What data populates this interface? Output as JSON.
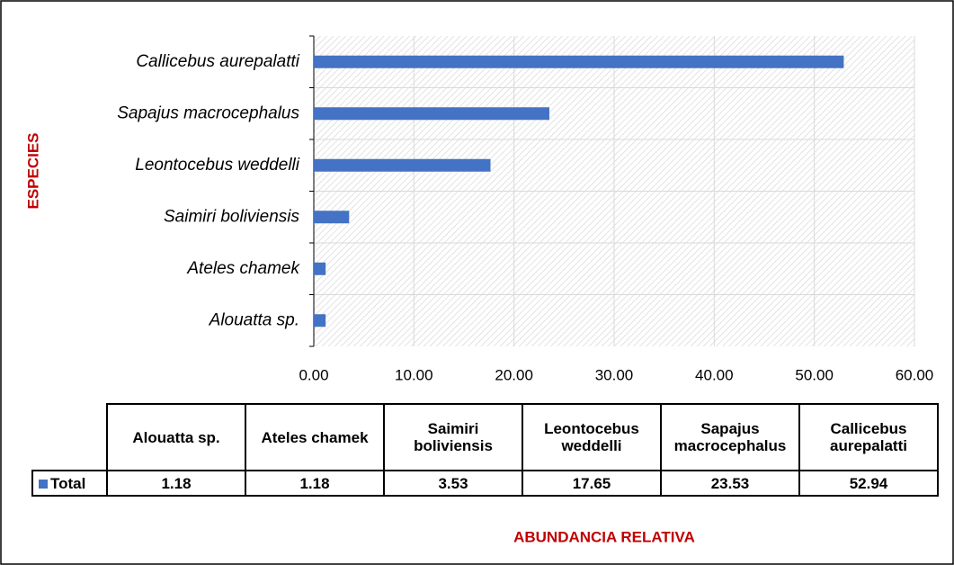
{
  "chart_data": {
    "type": "bar",
    "orientation": "horizontal",
    "categories": [
      "Alouatta sp.",
      "Ateles chamek",
      "Saimiri boliviensis",
      "Leontocebus weddelli",
      "Sapajus macrocephalus",
      "Callicebus aurepalatti"
    ],
    "series": [
      {
        "name": "Total",
        "color": "#4472c4",
        "values": [
          1.18,
          1.18,
          3.53,
          17.65,
          23.53,
          52.94
        ]
      }
    ],
    "xlim": [
      0,
      60
    ],
    "xticks": [
      {
        "value": 0,
        "label": "0.00"
      },
      {
        "value": 10,
        "label": "10.00"
      },
      {
        "value": 20,
        "label": "20.00"
      },
      {
        "value": 30,
        "label": "30.00"
      },
      {
        "value": 40,
        "label": "40.00"
      },
      {
        "value": 50,
        "label": "50.00"
      },
      {
        "value": 60,
        "label": "60.00"
      }
    ],
    "grid": true,
    "xlabel": "ABUNDANCIA RELATIVA",
    "ylabel": "ESPECIES"
  }
}
